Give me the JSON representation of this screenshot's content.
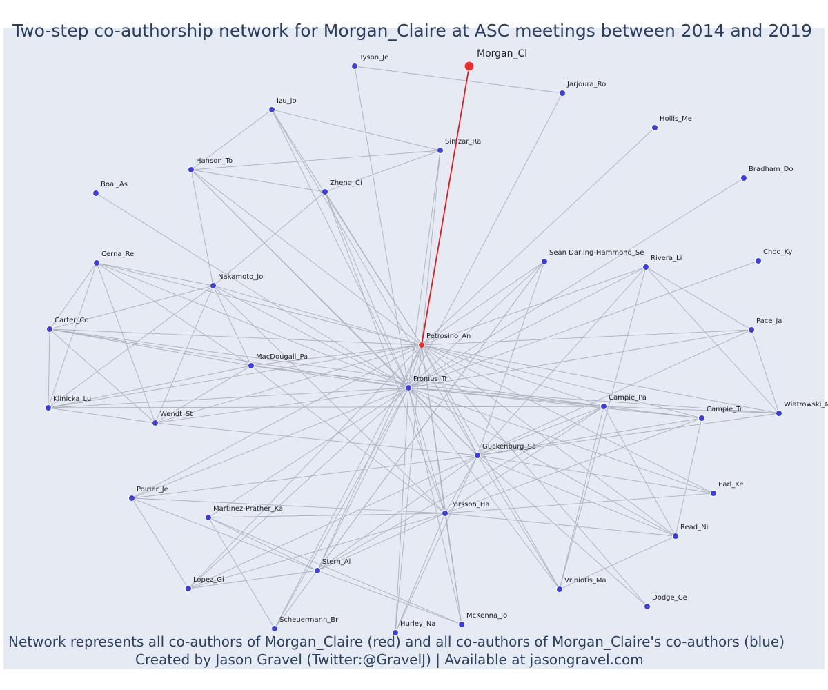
{
  "title": "Two-step co-authorship network for Morgan_Claire at ASC meetings between 2014 and 2019",
  "footer": {
    "line1": "Network represents all co-authors of Morgan_Claire (red) and all co-authors of Morgan_Claire's co-authors (blue)",
    "line2": "Created by Jason Gravel (Twitter:@GravelJ) | Available at jasongravel.com"
  },
  "colors": {
    "panel": "#e5eaf3",
    "edge": "#aab0bd",
    "highlight": "#e31a1c",
    "blue_node": "#3b3fe0",
    "red_node": "#e8302e",
    "text": "#2a3f5f"
  },
  "nodes": [
    {
      "id": "Morgan_Cl",
      "label": "Morgan_Cl",
      "group": "focus"
    },
    {
      "id": "Petrosino_An",
      "label": "Petrosino_An",
      "group": "coauthor"
    },
    {
      "id": "Tyson_Je",
      "label": "Tyson_Je",
      "group": "second"
    },
    {
      "id": "Jarjoura_Ro",
      "label": "Jarjoura_Ro",
      "group": "second"
    },
    {
      "id": "Izu_Jo",
      "label": "Izu_Jo",
      "group": "second"
    },
    {
      "id": "Simzar_Ra",
      "label": "Simzar_Ra",
      "group": "second"
    },
    {
      "id": "Hollis_Me",
      "label": "Hollis_Me",
      "group": "second"
    },
    {
      "id": "Hanson_To",
      "label": "Hanson_To",
      "group": "second"
    },
    {
      "id": "Zheng_Ci",
      "label": "Zheng_Ci",
      "group": "second"
    },
    {
      "id": "Bradham_Do",
      "label": "Bradham_Do",
      "group": "second"
    },
    {
      "id": "Boal_As",
      "label": "Boal_As",
      "group": "second"
    },
    {
      "id": "Sean",
      "label": "Sean Darling-Hammond_Se",
      "group": "second"
    },
    {
      "id": "Rivera_Li",
      "label": "Rivera_Li",
      "group": "second"
    },
    {
      "id": "Choo_Ky",
      "label": "Choo_Ky",
      "group": "second"
    },
    {
      "id": "Cerna_Re",
      "label": "Cerna_Re",
      "group": "second"
    },
    {
      "id": "Nakamoto_Jo",
      "label": "Nakamoto_Jo",
      "group": "second"
    },
    {
      "id": "Pace_Ja",
      "label": "Pace_Ja",
      "group": "second"
    },
    {
      "id": "Carter_Co",
      "label": "Carter_Co",
      "group": "second"
    },
    {
      "id": "MacDougall_Pa",
      "label": "MacDougall_Pa",
      "group": "second"
    },
    {
      "id": "Fronius_Tr",
      "label": "Fronius_Tr",
      "group": "second"
    },
    {
      "id": "Campie_Pa",
      "label": "Campie_Pa",
      "group": "second"
    },
    {
      "id": "Campie_Tr",
      "label": "Campie_Tr",
      "group": "second"
    },
    {
      "id": "Wiatrowski",
      "label": "Wiatrowski_M",
      "group": "second"
    },
    {
      "id": "Klinicka_Lu",
      "label": "Klinicka_Lu",
      "group": "second"
    },
    {
      "id": "Wendt_St",
      "label": "Wendt_St",
      "group": "second"
    },
    {
      "id": "Guckenburg_Sa",
      "label": "Guckenburg_Sa",
      "group": "second"
    },
    {
      "id": "Poirier_Je",
      "label": "Poirier_Je",
      "group": "second"
    },
    {
      "id": "Earl_Ke",
      "label": "Earl_Ke",
      "group": "second"
    },
    {
      "id": "Martinez",
      "label": "Martinez-Prather_Ka",
      "group": "second"
    },
    {
      "id": "Persson_Ha",
      "label": "Persson_Ha",
      "group": "second"
    },
    {
      "id": "Read_Ni",
      "label": "Read_Ni",
      "group": "second"
    },
    {
      "id": "Stern_Al",
      "label": "Stern_Al",
      "group": "second"
    },
    {
      "id": "Lopez_Gi",
      "label": "Lopez_Gi",
      "group": "second"
    },
    {
      "id": "Vriniotis_Ma",
      "label": "Vriniotis_Ma",
      "group": "second"
    },
    {
      "id": "Dodge_Ce",
      "label": "Dodge_Ce",
      "group": "second"
    },
    {
      "id": "Scheuermann_Br",
      "label": "Scheuermann_Br",
      "group": "second"
    },
    {
      "id": "McKenna_Jo",
      "label": "McKenna_Jo",
      "group": "second"
    },
    {
      "id": "Hurley_Na",
      "label": "Hurley_Na",
      "group": "second"
    }
  ],
  "highlight_edge": [
    "Petrosino_An",
    "Morgan_Cl"
  ],
  "edges": [
    [
      "Tyson_Je",
      "Jarjoura_Ro"
    ],
    [
      "Tyson_Je",
      "Fronius_Tr"
    ],
    [
      "Jarjoura_Ro",
      "Fronius_Tr"
    ],
    [
      "Izu_Jo",
      "Simzar_Ra"
    ],
    [
      "Izu_Jo",
      "Hanson_To"
    ],
    [
      "Izu_Jo",
      "Fronius_Tr"
    ],
    [
      "Izu_Jo",
      "Petrosino_An"
    ],
    [
      "Izu_Jo",
      "Guckenburg_Sa"
    ],
    [
      "Simzar_Ra",
      "Hanson_To"
    ],
    [
      "Simzar_Ra",
      "Zheng_Ci"
    ],
    [
      "Simzar_Ra",
      "Fronius_Tr"
    ],
    [
      "Simzar_Ra",
      "Petrosino_An"
    ],
    [
      "Hanson_To",
      "Zheng_Ci"
    ],
    [
      "Hanson_To",
      "Nakamoto_Jo"
    ],
    [
      "Hanson_To",
      "Fronius_Tr"
    ],
    [
      "Hanson_To",
      "Petrosino_An"
    ],
    [
      "Hanson_To",
      "Guckenburg_Sa"
    ],
    [
      "Zheng_Ci",
      "Nakamoto_Jo"
    ],
    [
      "Zheng_Ci",
      "Fronius_Tr"
    ],
    [
      "Zheng_Ci",
      "Petrosino_An"
    ],
    [
      "Zheng_Ci",
      "Persson_Ha"
    ],
    [
      "Hollis_Me",
      "Petrosino_An"
    ],
    [
      "Bradham_Do",
      "Fronius_Tr"
    ],
    [
      "Boal_As",
      "Fronius_Tr"
    ],
    [
      "Sean",
      "Petrosino_An"
    ],
    [
      "Sean",
      "Fronius_Tr"
    ],
    [
      "Sean",
      "Guckenburg_Sa"
    ],
    [
      "Sean",
      "Stern_Al"
    ],
    [
      "Sean",
      "Scheuermann_Br"
    ],
    [
      "Rivera_Li",
      "Petrosino_An"
    ],
    [
      "Rivera_Li",
      "Pace_Ja"
    ],
    [
      "Rivera_Li",
      "Wiatrowski"
    ],
    [
      "Rivera_Li",
      "Guckenburg_Sa"
    ],
    [
      "Rivera_Li",
      "Vriniotis_Ma"
    ],
    [
      "Rivera_Li",
      "Fronius_Tr"
    ],
    [
      "Choo_Ky",
      "Fronius_Tr"
    ],
    [
      "Cerna_Re",
      "Nakamoto_Jo"
    ],
    [
      "Cerna_Re",
      "Carter_Co"
    ],
    [
      "Cerna_Re",
      "Klinicka_Lu"
    ],
    [
      "Cerna_Re",
      "Wendt_St"
    ],
    [
      "Cerna_Re",
      "MacDougall_Pa"
    ],
    [
      "Cerna_Re",
      "Petrosino_An"
    ],
    [
      "Cerna_Re",
      "Fronius_Tr"
    ],
    [
      "Nakamoto_Jo",
      "Carter_Co"
    ],
    [
      "Nakamoto_Jo",
      "Klinicka_Lu"
    ],
    [
      "Nakamoto_Jo",
      "Wendt_St"
    ],
    [
      "Nakamoto_Jo",
      "MacDougall_Pa"
    ],
    [
      "Nakamoto_Jo",
      "Petrosino_An"
    ],
    [
      "Nakamoto_Jo",
      "Fronius_Tr"
    ],
    [
      "Nakamoto_Jo",
      "Persson_Ha"
    ],
    [
      "Pace_Ja",
      "Petrosino_An"
    ],
    [
      "Pace_Ja",
      "Fronius_Tr"
    ],
    [
      "Pace_Ja",
      "Guckenburg_Sa"
    ],
    [
      "Pace_Ja",
      "Wiatrowski"
    ],
    [
      "Carter_Co",
      "Klinicka_Lu"
    ],
    [
      "Carter_Co",
      "Wendt_St"
    ],
    [
      "Carter_Co",
      "MacDougall_Pa"
    ],
    [
      "Carter_Co",
      "Petrosino_An"
    ],
    [
      "Carter_Co",
      "Fronius_Tr"
    ],
    [
      "Carter_Co",
      "Campie_Pa"
    ],
    [
      "MacDougall_Pa",
      "Klinicka_Lu"
    ],
    [
      "MacDougall_Pa",
      "Wendt_St"
    ],
    [
      "MacDougall_Pa",
      "Petrosino_An"
    ],
    [
      "MacDougall_Pa",
      "Fronius_Tr"
    ],
    [
      "MacDougall_Pa",
      "Campie_Pa"
    ],
    [
      "MacDougall_Pa",
      "Persson_Ha"
    ],
    [
      "Fronius_Tr",
      "Petrosino_An"
    ],
    [
      "Fronius_Tr",
      "Campie_Pa"
    ],
    [
      "Fronius_Tr",
      "Campie_Tr"
    ],
    [
      "Fronius_Tr",
      "Wiatrowski"
    ],
    [
      "Fronius_Tr",
      "Klinicka_Lu"
    ],
    [
      "Fronius_Tr",
      "Wendt_St"
    ],
    [
      "Fronius_Tr",
      "Guckenburg_Sa"
    ],
    [
      "Fronius_Tr",
      "Poirier_Je"
    ],
    [
      "Fronius_Tr",
      "Martinez"
    ],
    [
      "Fronius_Tr",
      "Persson_Ha"
    ],
    [
      "Fronius_Tr",
      "Read_Ni"
    ],
    [
      "Fronius_Tr",
      "Stern_Al"
    ],
    [
      "Fronius_Tr",
      "Lopez_Gi"
    ],
    [
      "Fronius_Tr",
      "Vriniotis_Ma"
    ],
    [
      "Fronius_Tr",
      "Scheuermann_Br"
    ],
    [
      "Fronius_Tr",
      "McKenna_Jo"
    ],
    [
      "Fronius_Tr",
      "Hurley_Na"
    ],
    [
      "Fronius_Tr",
      "Earl_Ke"
    ],
    [
      "Petrosino_An",
      "Campie_Pa"
    ],
    [
      "Petrosino_An",
      "Campie_Tr"
    ],
    [
      "Petrosino_An",
      "Wiatrowski"
    ],
    [
      "Petrosino_An",
      "Klinicka_Lu"
    ],
    [
      "Petrosino_An",
      "Wendt_St"
    ],
    [
      "Petrosino_An",
      "Guckenburg_Sa"
    ],
    [
      "Petrosino_An",
      "Persson_Ha"
    ],
    [
      "Petrosino_An",
      "Read_Ni"
    ],
    [
      "Petrosino_An",
      "Stern_Al"
    ],
    [
      "Petrosino_An",
      "Vriniotis_Ma"
    ],
    [
      "Petrosino_An",
      "Dodge_Ce"
    ],
    [
      "Petrosino_An",
      "Scheuermann_Br"
    ],
    [
      "Petrosino_An",
      "McKenna_Jo"
    ],
    [
      "Petrosino_An",
      "Hurley_Na"
    ],
    [
      "Petrosino_An",
      "Earl_Ke"
    ],
    [
      "Petrosino_An",
      "Lopez_Gi"
    ],
    [
      "Petrosino_An",
      "Poirier_Je"
    ],
    [
      "Campie_Pa",
      "Campie_Tr"
    ],
    [
      "Campie_Pa",
      "Wiatrowski"
    ],
    [
      "Campie_Pa",
      "Guckenburg_Sa"
    ],
    [
      "Campie_Pa",
      "Persson_Ha"
    ],
    [
      "Campie_Pa",
      "Read_Ni"
    ],
    [
      "Campie_Pa",
      "Vriniotis_Ma"
    ],
    [
      "Campie_Pa",
      "Stern_Al"
    ],
    [
      "Campie_Pa",
      "Klinicka_Lu"
    ],
    [
      "Campie_Tr",
      "Guckenburg_Sa"
    ],
    [
      "Campie_Tr",
      "Read_Ni"
    ],
    [
      "Campie_Tr",
      "Persson_Ha"
    ],
    [
      "Wiatrowski",
      "Guckenburg_Sa"
    ],
    [
      "Klinicka_Lu",
      "Wendt_St"
    ],
    [
      "Wendt_St",
      "Guckenburg_Sa"
    ],
    [
      "Guckenburg_Sa",
      "Earl_Ke"
    ],
    [
      "Guckenburg_Sa",
      "Read_Ni"
    ],
    [
      "Guckenburg_Sa",
      "Persson_Ha"
    ],
    [
      "Guckenburg_Sa",
      "Poirier_Je"
    ],
    [
      "Guckenburg_Sa",
      "Stern_Al"
    ],
    [
      "Guckenburg_Sa",
      "Lopez_Gi"
    ],
    [
      "Guckenburg_Sa",
      "Dodge_Ce"
    ],
    [
      "Guckenburg_Sa",
      "Hurley_Na"
    ],
    [
      "Guckenburg_Sa",
      "Vriniotis_Ma"
    ],
    [
      "Poirier_Je",
      "Persson_Ha"
    ],
    [
      "Poirier_Je",
      "Lopez_Gi"
    ],
    [
      "Poirier_Je",
      "Stern_Al"
    ],
    [
      "Martinez",
      "Persson_Ha"
    ],
    [
      "Martinez",
      "Stern_Al"
    ],
    [
      "Martinez",
      "McKenna_Jo"
    ],
    [
      "Martinez",
      "Scheuermann_Br"
    ],
    [
      "Persson_Ha",
      "Earl_Ke"
    ],
    [
      "Persson_Ha",
      "Read_Ni"
    ],
    [
      "Persson_Ha",
      "Stern_Al"
    ],
    [
      "Persson_Ha",
      "Lopez_Gi"
    ],
    [
      "Persson_Ha",
      "McKenna_Jo"
    ],
    [
      "Persson_Ha",
      "Hurley_Na"
    ],
    [
      "Read_Ni",
      "Vriniotis_Ma"
    ],
    [
      "Stern_Al",
      "Lopez_Gi"
    ],
    [
      "Stern_Al",
      "McKenna_Jo"
    ]
  ]
}
